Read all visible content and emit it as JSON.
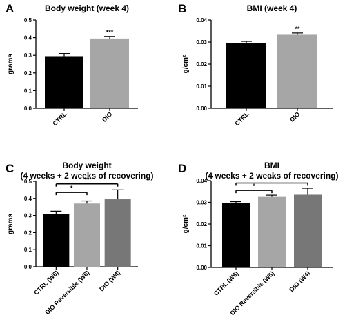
{
  "chart_data": [
    {
      "type": "bar",
      "panel": "A",
      "title": "Body weight (week 4)",
      "subtitle": "",
      "ylabel": "grams",
      "ylim": [
        0,
        0.5
      ],
      "yticks": [
        "0.0",
        "0.1",
        "0.2",
        "0.3",
        "0.4",
        "0.5"
      ],
      "categories": [
        "CTRL",
        "DIO"
      ],
      "values": [
        0.295,
        0.395
      ],
      "errors": [
        0.015,
        0.012
      ],
      "colors": [
        "#000000",
        "#a6a6a6"
      ],
      "annotations": [
        {
          "category": 1,
          "text": "***"
        }
      ],
      "brackets": []
    },
    {
      "type": "bar",
      "panel": "B",
      "title": "BMI (week 4)",
      "subtitle": "",
      "ylabel": "g/cm²",
      "ylim": [
        0,
        0.04
      ],
      "yticks": [
        "0.00",
        "0.01",
        "0.02",
        "0.03",
        "0.04"
      ],
      "categories": [
        "CTRL",
        "DIO"
      ],
      "values": [
        0.0295,
        0.0333
      ],
      "errors": [
        0.0008,
        0.0008
      ],
      "colors": [
        "#000000",
        "#a6a6a6"
      ],
      "annotations": [
        {
          "category": 1,
          "text": "**"
        }
      ],
      "brackets": []
    },
    {
      "type": "bar",
      "panel": "C",
      "title": "Body weight",
      "subtitle": "(4 weeks + 2 weeks of recovering)",
      "ylabel": "grams",
      "ylim": [
        0,
        0.5
      ],
      "yticks": [
        "0.0",
        "0.1",
        "0.2",
        "0.3",
        "0.4",
        "0.5"
      ],
      "categories": [
        "CTRL (W6)",
        "DIO Reversible (W6)",
        "DIO (W4)"
      ],
      "values": [
        0.31,
        0.37,
        0.395
      ],
      "errors": [
        0.015,
        0.015,
        0.055
      ],
      "colors": [
        "#000000",
        "#a6a6a6",
        "#777777"
      ],
      "annotations": [],
      "brackets": [
        {
          "from": 0,
          "to": 1,
          "level": 0.435,
          "text": "*"
        },
        {
          "from": 0,
          "to": 2,
          "level": 0.485,
          "text": "**"
        }
      ]
    },
    {
      "type": "bar",
      "panel": "D",
      "title": "BMI",
      "subtitle": "(4 weeks + 2 weeks of recovering)",
      "ylabel": "g/cm²",
      "ylim": [
        0,
        0.04
      ],
      "yticks": [
        "0.00",
        "0.01",
        "0.02",
        "0.03",
        "0.04"
      ],
      "categories": [
        "CTRL (W6)",
        "DIO Reversible (W6)",
        "DIO (W4)"
      ],
      "values": [
        0.0298,
        0.0325,
        0.0335
      ],
      "errors": [
        0.0005,
        0.0008,
        0.003
      ],
      "colors": [
        "#000000",
        "#a6a6a6",
        "#777777"
      ],
      "annotations": [],
      "brackets": [
        {
          "from": 0,
          "to": 1,
          "level": 0.0355,
          "text": "*"
        },
        {
          "from": 0,
          "to": 2,
          "level": 0.0389,
          "text": "**"
        }
      ]
    }
  ]
}
